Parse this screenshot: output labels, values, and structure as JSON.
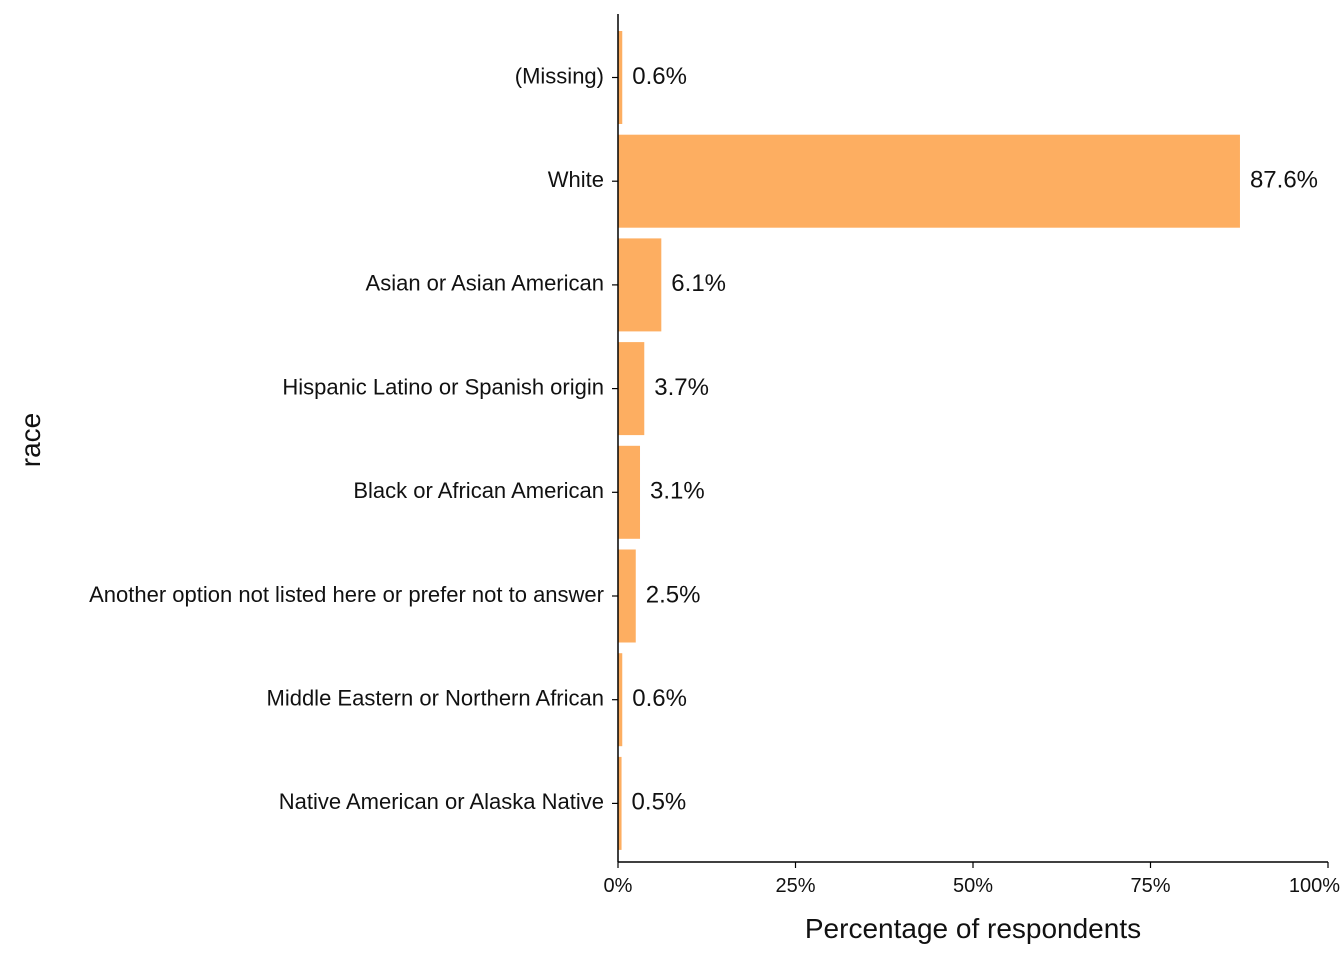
{
  "chart_data": {
    "type": "bar",
    "orientation": "horizontal",
    "title": "",
    "xlabel": "Percentage of respondents",
    "ylabel": "race",
    "categories": [
      "(Missing)",
      "White",
      "Asian or Asian American",
      "Hispanic Latino or Spanish origin",
      "Black or African American",
      "Another option not listed here or prefer not to answer",
      "Middle Eastern or Northern African",
      "Native American or Alaska Native"
    ],
    "values": [
      0.6,
      87.6,
      6.1,
      3.7,
      3.1,
      2.5,
      0.6,
      0.5
    ],
    "value_labels": [
      "0.6%",
      "87.6%",
      "6.1%",
      "3.7%",
      "3.1%",
      "2.5%",
      "0.6%",
      "0.5%"
    ],
    "xlim": [
      0,
      100
    ],
    "xticks": [
      0,
      25,
      50,
      75,
      100
    ],
    "xtick_labels": [
      "0%",
      "25%",
      "50%",
      "75%",
      "100%"
    ],
    "grid": false,
    "legend": "none",
    "bar_color": "#fdae61",
    "axis_color": "#000000"
  }
}
